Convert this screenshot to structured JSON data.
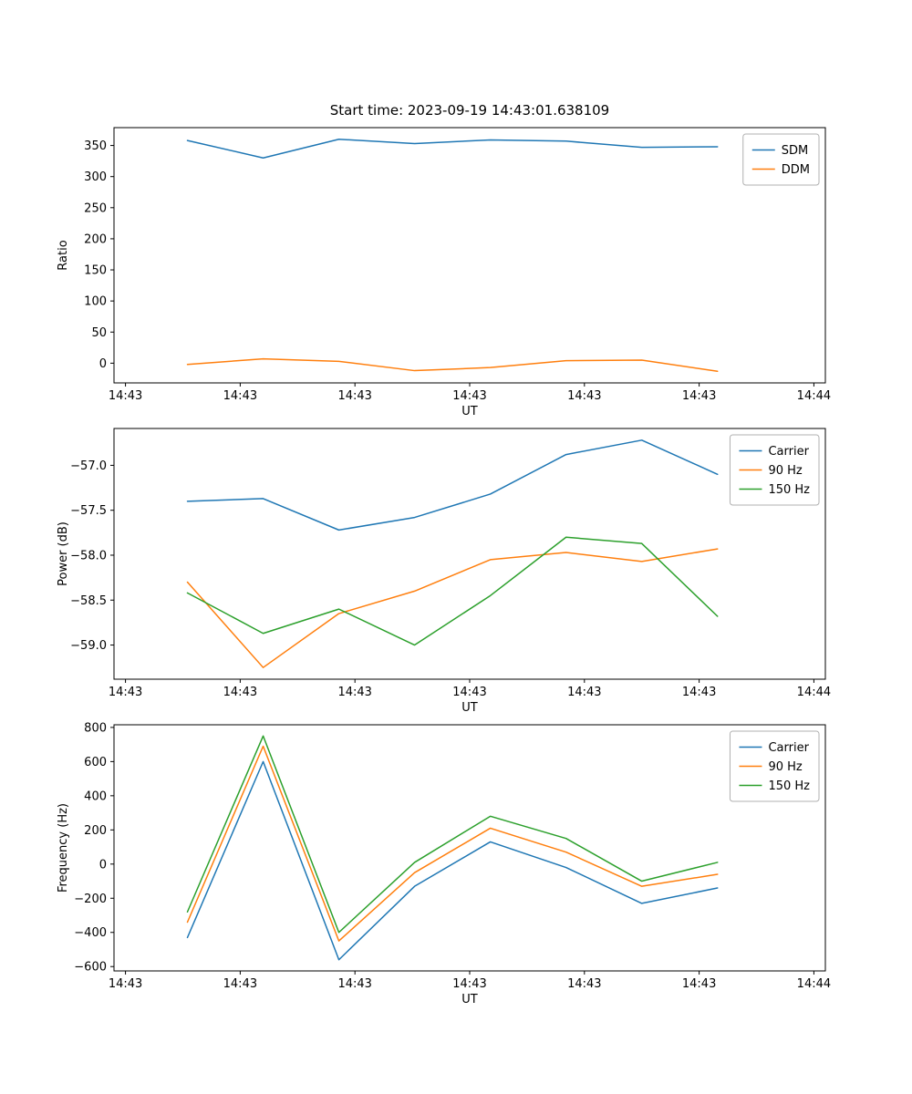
{
  "figure_title": "Start time: 2023-09-19 14:43:01.638109",
  "axis_color": "#000000",
  "legend_border_color": "#b0b0b0",
  "chart_data": [
    {
      "name": "ratio",
      "type": "line",
      "title": "Start time: 2023-09-19 14:43:01.638109",
      "xlabel": "UT",
      "ylabel": "Ratio",
      "xlim": [
        -1,
        61
      ],
      "ylim": [
        -31.7,
        378.7
      ],
      "grid": false,
      "legend_position": "upper right",
      "x": [
        5.4,
        12.0,
        18.6,
        25.2,
        31.8,
        38.4,
        45.0,
        51.6
      ],
      "xticks": [
        {
          "value": 0,
          "label": "14:43"
        },
        {
          "value": 10,
          "label": "14:43"
        },
        {
          "value": 20,
          "label": "14:43"
        },
        {
          "value": 30,
          "label": "14:43"
        },
        {
          "value": 40,
          "label": "14:43"
        },
        {
          "value": 50,
          "label": "14:43"
        },
        {
          "value": 60,
          "label": "14:44"
        }
      ],
      "yticks": [
        {
          "value": 0,
          "label": "0"
        },
        {
          "value": 50,
          "label": "50"
        },
        {
          "value": 100,
          "label": "100"
        },
        {
          "value": 150,
          "label": "150"
        },
        {
          "value": 200,
          "label": "200"
        },
        {
          "value": 250,
          "label": "250"
        },
        {
          "value": 300,
          "label": "300"
        },
        {
          "value": 350,
          "label": "350"
        }
      ],
      "series": [
        {
          "name": "SDM",
          "color": "#1f77b4",
          "values": [
            358,
            330,
            360,
            353,
            359,
            357,
            347,
            348
          ]
        },
        {
          "name": "DDM",
          "color": "#ff7f0e",
          "values": [
            -2,
            7,
            3,
            -12,
            -7,
            4,
            5,
            -13
          ]
        }
      ]
    },
    {
      "name": "power",
      "type": "line",
      "title": "",
      "xlabel": "UT",
      "ylabel": "Power (dB)",
      "xlim": [
        -1,
        61
      ],
      "ylim": [
        -59.38,
        -56.59
      ],
      "grid": false,
      "legend_position": "upper right",
      "x": [
        5.4,
        12.0,
        18.6,
        25.2,
        31.8,
        38.4,
        45.0,
        51.6
      ],
      "xticks": [
        {
          "value": 0,
          "label": "14:43"
        },
        {
          "value": 10,
          "label": "14:43"
        },
        {
          "value": 20,
          "label": "14:43"
        },
        {
          "value": 30,
          "label": "14:43"
        },
        {
          "value": 40,
          "label": "14:43"
        },
        {
          "value": 50,
          "label": "14:43"
        },
        {
          "value": 60,
          "label": "14:44"
        }
      ],
      "yticks": [
        {
          "value": -59.0,
          "label": "−59.0"
        },
        {
          "value": -58.5,
          "label": "−58.5"
        },
        {
          "value": -58.0,
          "label": "−58.0"
        },
        {
          "value": -57.5,
          "label": "−57.5"
        },
        {
          "value": -57.0,
          "label": "−57.0"
        }
      ],
      "series": [
        {
          "name": "Carrier",
          "color": "#1f77b4",
          "values": [
            -57.4,
            -57.37,
            -57.72,
            -57.58,
            -57.32,
            -56.88,
            -56.72,
            -57.1
          ]
        },
        {
          "name": "90 Hz",
          "color": "#ff7f0e",
          "values": [
            -58.3,
            -59.25,
            -58.65,
            -58.4,
            -58.05,
            -57.97,
            -58.07,
            -57.93
          ]
        },
        {
          "name": "150 Hz",
          "color": "#2ca02c",
          "values": [
            -58.42,
            -58.87,
            -58.6,
            -59.0,
            -58.45,
            -57.8,
            -57.87,
            -58.68
          ]
        }
      ]
    },
    {
      "name": "frequency",
      "type": "line",
      "title": "",
      "xlabel": "UT",
      "ylabel": "Frequency (Hz)",
      "xlim": [
        -1,
        61
      ],
      "ylim": [
        -625.5,
        815.5
      ],
      "grid": false,
      "legend_position": "upper right",
      "x": [
        5.4,
        12.0,
        18.6,
        25.2,
        31.8,
        38.4,
        45.0,
        51.6
      ],
      "xticks": [
        {
          "value": 0,
          "label": "14:43"
        },
        {
          "value": 10,
          "label": "14:43"
        },
        {
          "value": 20,
          "label": "14:43"
        },
        {
          "value": 30,
          "label": "14:43"
        },
        {
          "value": 40,
          "label": "14:43"
        },
        {
          "value": 50,
          "label": "14:43"
        },
        {
          "value": 60,
          "label": "14:44"
        }
      ],
      "yticks": [
        {
          "value": -600,
          "label": "−600"
        },
        {
          "value": -400,
          "label": "−400"
        },
        {
          "value": -200,
          "label": "−200"
        },
        {
          "value": 0,
          "label": "0"
        },
        {
          "value": 200,
          "label": "200"
        },
        {
          "value": 400,
          "label": "400"
        },
        {
          "value": 600,
          "label": "600"
        },
        {
          "value": 800,
          "label": "800"
        }
      ],
      "series": [
        {
          "name": "Carrier",
          "color": "#1f77b4",
          "values": [
            -430,
            600,
            -560,
            -130,
            130,
            -20,
            -230,
            -140
          ]
        },
        {
          "name": "90 Hz",
          "color": "#ff7f0e",
          "values": [
            -340,
            690,
            -450,
            -50,
            210,
            70,
            -130,
            -60
          ]
        },
        {
          "name": "150 Hz",
          "color": "#2ca02c",
          "values": [
            -280,
            750,
            -400,
            10,
            280,
            150,
            -100,
            10
          ]
        }
      ]
    }
  ]
}
